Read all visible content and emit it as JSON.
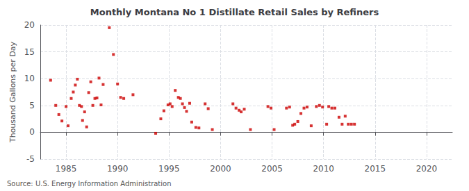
{
  "chart_data": {
    "type": "scatter",
    "title": "Monthly Montana No 1 Distillate Retail Sales by Refiners",
    "ylabel": "Thousand Gallons per Day",
    "source": "Source: U.S. Energy Information Administration",
    "color": "#cc0000",
    "marker": "square",
    "grid": true,
    "xlim": [
      1982.5,
      2022.5
    ],
    "ylim": [
      -5,
      20
    ],
    "yticks": [
      -5,
      0,
      5,
      10,
      15,
      20
    ],
    "xticks": [
      1985,
      1990,
      1995,
      2000,
      2005,
      2010,
      2015,
      2020
    ],
    "x": [
      1983.5,
      1984.0,
      1984.3,
      1984.6,
      1985.0,
      1985.2,
      1985.5,
      1985.7,
      1985.9,
      1986.1,
      1986.3,
      1986.5,
      1986.6,
      1986.8,
      1987.0,
      1987.2,
      1987.4,
      1987.6,
      1987.8,
      1988.0,
      1988.2,
      1988.4,
      1988.6,
      1989.2,
      1989.6,
      1990.0,
      1990.3,
      1990.6,
      1991.5,
      1993.7,
      1994.2,
      1994.5,
      1994.9,
      1995.1,
      1995.3,
      1995.6,
      1995.9,
      1996.1,
      1996.3,
      1996.5,
      1996.7,
      1997.0,
      1997.2,
      1997.6,
      1997.9,
      1998.5,
      1998.8,
      1999.2,
      2001.2,
      2001.5,
      2001.8,
      2002.0,
      2002.3,
      2002.9,
      2004.6,
      2004.9,
      2005.2,
      2006.4,
      2006.7,
      2007.0,
      2007.2,
      2007.5,
      2007.8,
      2008.1,
      2008.4,
      2008.8,
      2009.3,
      2009.6,
      2009.9,
      2010.3,
      2010.5,
      2010.8,
      2011.1,
      2011.5,
      2011.8,
      2012.1,
      2012.4,
      2012.7,
      2013.0
    ],
    "values": [
      9.7,
      5.0,
      3.3,
      2.1,
      4.8,
      1.2,
      6.3,
      7.5,
      8.8,
      9.9,
      5.0,
      4.8,
      2.2,
      3.8,
      1.0,
      7.4,
      9.4,
      5.0,
      6.3,
      6.4,
      10.1,
      5.1,
      8.9,
      19.5,
      14.5,
      9.0,
      6.5,
      6.3,
      7.0,
      -0.2,
      2.5,
      4.0,
      5.1,
      5.3,
      4.8,
      7.8,
      6.5,
      6.3,
      5.3,
      4.6,
      3.9,
      5.4,
      1.9,
      0.9,
      0.8,
      5.3,
      4.4,
      0.5,
      5.3,
      4.5,
      4.1,
      3.8,
      4.3,
      0.5,
      4.8,
      4.5,
      0.5,
      4.5,
      4.7,
      1.3,
      1.5,
      2.0,
      3.5,
      4.5,
      4.7,
      1.2,
      4.8,
      5.0,
      4.7,
      1.5,
      4.8,
      4.5,
      4.5,
      2.8,
      1.5,
      3.0,
      1.5,
      1.5,
      1.5
    ]
  }
}
